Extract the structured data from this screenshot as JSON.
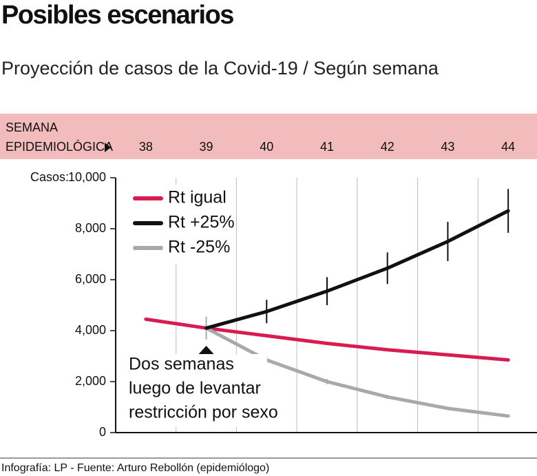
{
  "title": "Posibles escenarios",
  "subtitle": "Proyección de casos de la Covid-19 / Según semana",
  "footer": "Infografía: LP - Fuente: Arturo Rebollón (epidemiólogo)",
  "chart_data": {
    "type": "line",
    "x_label": [
      "SEMANA",
      "EPIDEMIOLÓGICA"
    ],
    "y_label": "Casos:",
    "x": [
      38,
      39,
      40,
      41,
      42,
      43,
      44
    ],
    "xlim": [
      37.5,
      44.5
    ],
    "xticks": [
      38,
      39,
      40,
      41,
      42,
      43,
      44
    ],
    "ylim": [
      0,
      10000
    ],
    "yticks": [
      0,
      {
        "value": 2000,
        "label": "2,000"
      },
      {
        "value": 4000,
        "label": "4,000"
      },
      {
        "value": 6000,
        "label": "6,000"
      },
      {
        "value": 8000,
        "label": "8,000"
      },
      {
        "value": 10000,
        "label": "10,000"
      }
    ],
    "series": [
      {
        "name": "Rt igual",
        "color": "#d81b50",
        "values": [
          4450,
          4100,
          3800,
          3500,
          3250,
          3050,
          2850
        ]
      },
      {
        "name": "Rt +25%",
        "color": "#111111",
        "values": [
          null,
          4100,
          4750,
          5550,
          6450,
          7500,
          8700
        ],
        "errors": [
          null,
          null,
          460,
          550,
          620,
          770,
          860
        ]
      },
      {
        "name": "Rt -25%",
        "color": "#a9a9ad",
        "values": [
          null,
          4100,
          2850,
          2000,
          1400,
          950,
          650
        ],
        "errors": [
          null,
          450,
          150,
          100,
          80,
          60,
          50
        ]
      }
    ],
    "annotation": [
      "Dos semanas",
      "luego de levantar",
      "restricción por sexo"
    ]
  }
}
